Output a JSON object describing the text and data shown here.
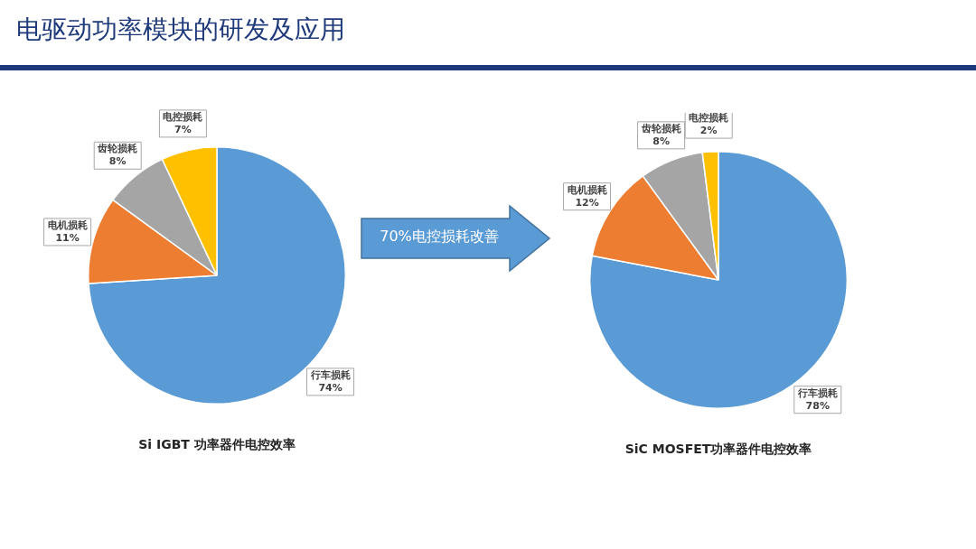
{
  "chart_data": [
    {
      "type": "other",
      "title": "电驱动功率模块的研发及应用"
    },
    {
      "type": "pie",
      "title": "Si IGBT 功率器件电控效率",
      "categories": [
        "行车损耗",
        "电机损耗",
        "齿轮损耗",
        "电控损耗"
      ],
      "values": [
        74,
        11,
        8,
        7
      ],
      "value_labels": [
        "74%",
        "11%",
        "8%",
        "7%"
      ],
      "colors": [
        "#5b9bd5",
        "#ed7d31",
        "#a5a5a5",
        "#ffc000"
      ]
    },
    {
      "type": "other",
      "annotations": [
        "70%电控损耗改善"
      ]
    },
    {
      "type": "pie",
      "title": "SiC MOSFET功率器件电控效率",
      "categories": [
        "行车损耗",
        "电机损耗",
        "齿轮损耗",
        "电控损耗"
      ],
      "values": [
        78,
        12,
        8,
        2
      ],
      "value_labels": [
        "78%",
        "12%",
        "8%",
        "2%"
      ],
      "colors": [
        "#5b9bd5",
        "#ed7d31",
        "#a5a5a5",
        "#ffc000"
      ]
    }
  ]
}
